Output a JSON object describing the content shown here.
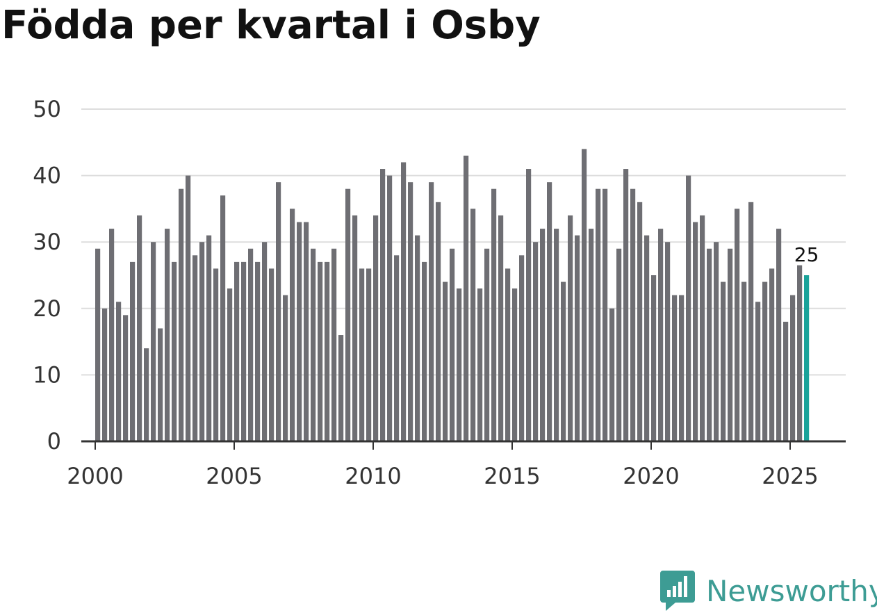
{
  "title": "Födda per kvartal i Osby",
  "brand": {
    "name": "Newsworthy",
    "icon": "newsworthy-logo-icon"
  },
  "colors": {
    "bar": "#6e6e73",
    "highlight": "#1aa39a",
    "grid": "#dddddd",
    "axis": "#333333",
    "brand": "#3d9c94"
  },
  "chart_data": {
    "type": "bar",
    "title": "Födda per kvartal i Osby",
    "xlabel": "",
    "ylabel": "",
    "ylim": [
      0,
      50
    ],
    "yticks": [
      0,
      10,
      20,
      30,
      40,
      50
    ],
    "xticks": [
      2000,
      2005,
      2010,
      2015,
      2020,
      2025
    ],
    "xlim": [
      1999.5,
      2027.0
    ],
    "start_year": 2000,
    "values": [
      29,
      20,
      32,
      21,
      19,
      27,
      34,
      14,
      30,
      17,
      32,
      27,
      38,
      40,
      28,
      30,
      31,
      26,
      37,
      23,
      27,
      27,
      29,
      27,
      30,
      26,
      39,
      22,
      35,
      33,
      33,
      29,
      27,
      27,
      29,
      16,
      38,
      34,
      26,
      26,
      34,
      41,
      40,
      28,
      42,
      39,
      31,
      27,
      39,
      36,
      24,
      29,
      23,
      43,
      35,
      23,
      29,
      38,
      34,
      26,
      23,
      28,
      41,
      30,
      32,
      39,
      32,
      24,
      34,
      31,
      44,
      32,
      38,
      38,
      20,
      29,
      41,
      38,
      36,
      31,
      25,
      32,
      30,
      22,
      22,
      40,
      33,
      34,
      29,
      30,
      24,
      29,
      35,
      24,
      36,
      21,
      24,
      26,
      32,
      18,
      22,
      26.5,
      25
    ],
    "highlight_label": "25"
  }
}
